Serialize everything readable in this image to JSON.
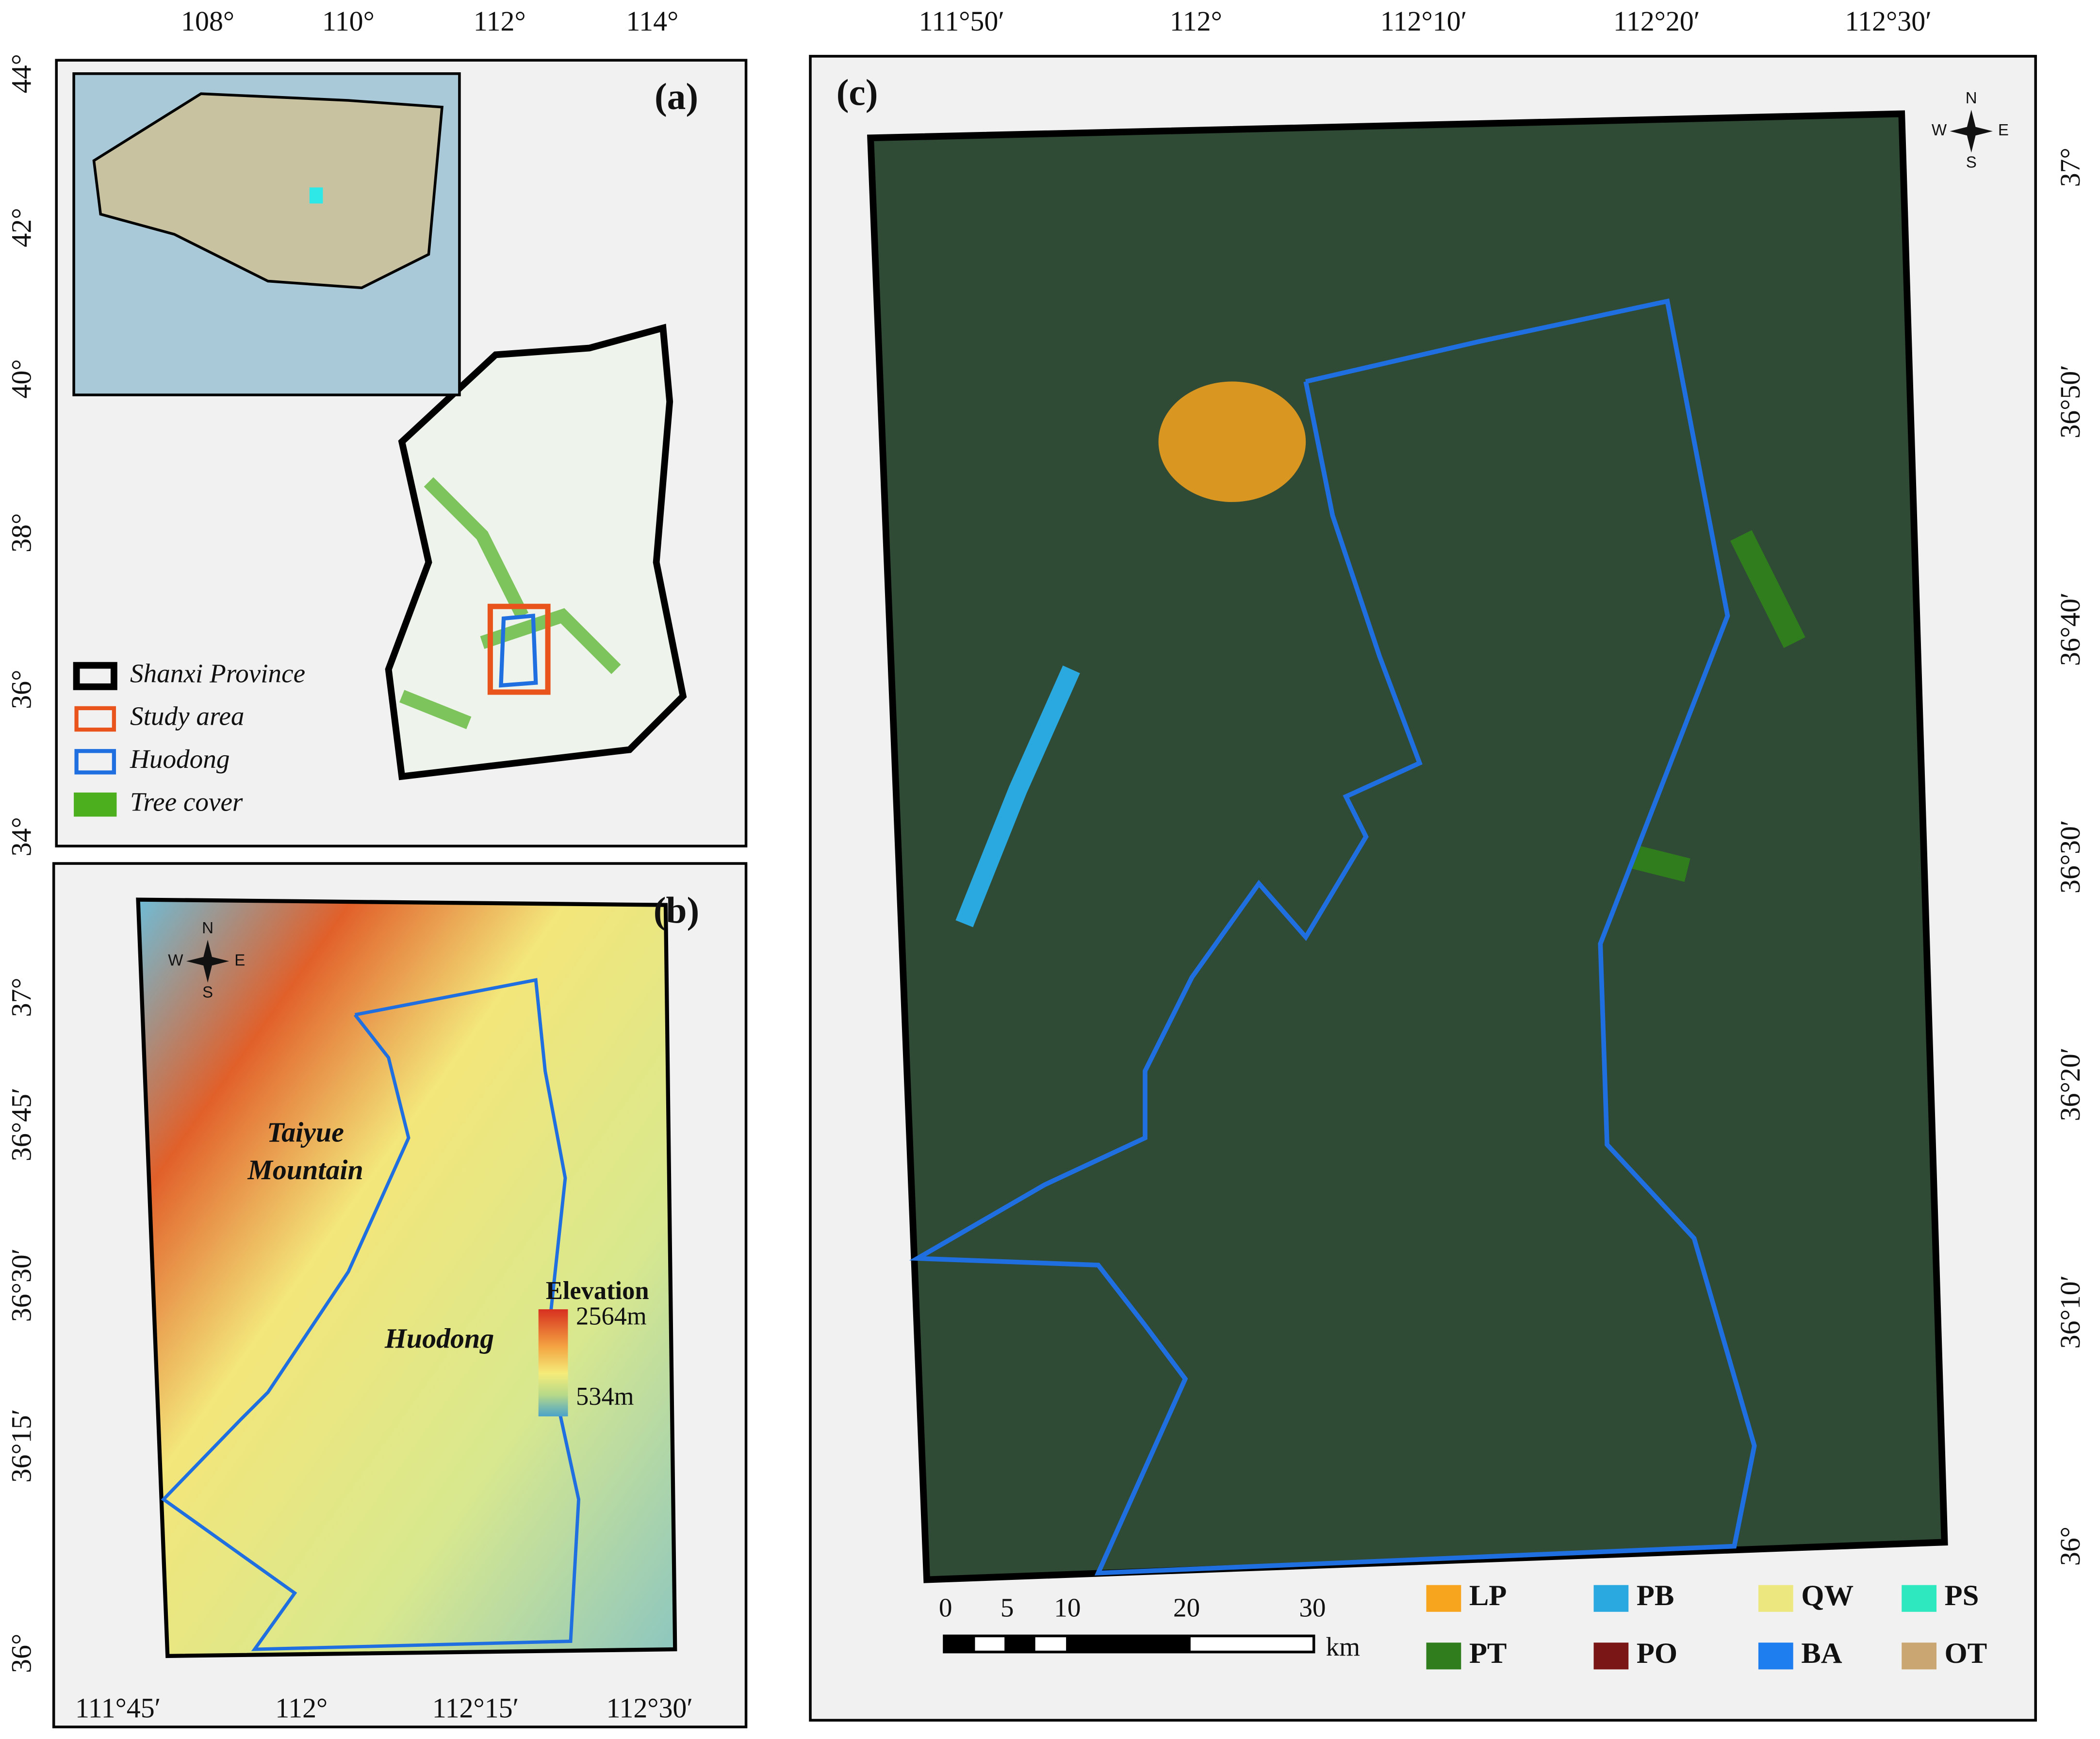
{
  "panel_a": {
    "label": "(a)",
    "top_ticks": [
      "108°",
      "110°",
      "112°",
      "114°"
    ],
    "left_ticks": [
      "44°",
      "42°",
      "40°",
      "38°",
      "36°",
      "34°"
    ],
    "legend": [
      {
        "name": "Shanxi Province",
        "color": "#000000"
      },
      {
        "name": "Study area",
        "color": "#e8541c"
      },
      {
        "name": "Huodong",
        "color": "#1f6fe0"
      },
      {
        "name": "Tree cover",
        "color": "#4caf1e"
      }
    ]
  },
  "panel_b": {
    "label": "(b)",
    "left_ticks": [
      "37°",
      "36°45′",
      "36°30′",
      "36°15′",
      "36°"
    ],
    "bottom_ticks": [
      "111°45′",
      "112°",
      "112°15′",
      "112°30′"
    ],
    "annotations": [
      "Taiyue",
      "Mountain",
      "Huodong"
    ],
    "elevation": {
      "title": "Elevation",
      "max": "2564m",
      "min": "534m"
    },
    "compass": [
      "N",
      "S",
      "W",
      "E"
    ]
  },
  "panel_c": {
    "label": "(c)",
    "top_ticks": [
      "111°50′",
      "112°",
      "112°10′",
      "112°20′",
      "112°30′"
    ],
    "right_ticks": [
      "37°",
      "36°50′",
      "36°40′",
      "36°30′",
      "36°20′",
      "36°10′",
      "36°"
    ],
    "scale_bar": [
      "0",
      "5",
      "10",
      "20",
      "30",
      "km"
    ],
    "compass": [
      "N",
      "S",
      "W",
      "E"
    ],
    "legend": [
      {
        "name": "LP",
        "color": "#f7a51f"
      },
      {
        "name": "PB",
        "color": "#29a9e0"
      },
      {
        "name": "QW",
        "color": "#ece77e"
      },
      {
        "name": "PS",
        "color": "#2ee8c0"
      },
      {
        "name": "PT",
        "color": "#2f7d1c"
      },
      {
        "name": "PO",
        "color": "#7a1616"
      },
      {
        "name": "BA",
        "color": "#1e7ef0"
      },
      {
        "name": "OT",
        "color": "#c9a672"
      }
    ]
  }
}
